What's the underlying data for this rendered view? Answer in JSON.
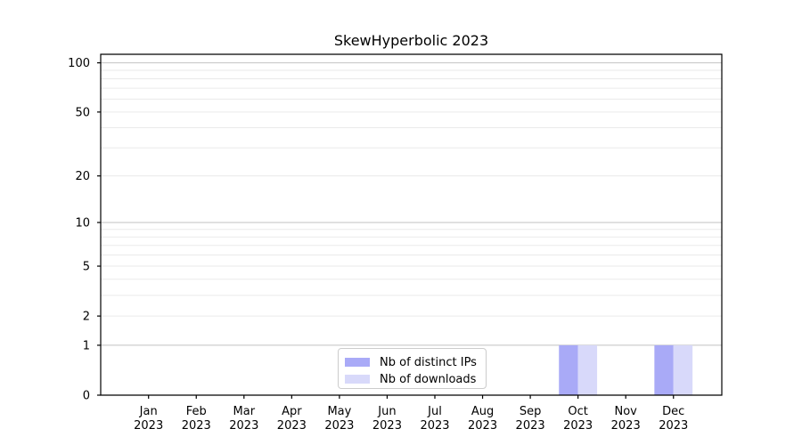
{
  "title": "SkewHyperbolic 2023",
  "colors": {
    "series_distinct_ips": "#a9aaf7",
    "series_downloads": "#d8d9fa",
    "grid_major": "#c2c2c2",
    "grid_minor": "#eaeaea",
    "axis": "#000000",
    "text": "#000000",
    "legend_border": "#cccccc",
    "background": "#ffffff"
  },
  "legend": {
    "items": [
      {
        "label": "Nb of distinct IPs",
        "color": "#a9aaf7"
      },
      {
        "label": "Nb of downloads",
        "color": "#d8d9fa"
      }
    ],
    "position": "lower center"
  },
  "chart_data": {
    "type": "bar",
    "title": "SkewHyperbolic 2023",
    "categories": [
      "Jan 2023",
      "Feb 2023",
      "Mar 2023",
      "Apr 2023",
      "May 2023",
      "Jun 2023",
      "Jul 2023",
      "Aug 2023",
      "Sep 2023",
      "Oct 2023",
      "Nov 2023",
      "Dec 2023"
    ],
    "category_month_labels": [
      "Jan",
      "Feb",
      "Mar",
      "Apr",
      "May",
      "Jun",
      "Jul",
      "Aug",
      "Sep",
      "Oct",
      "Nov",
      "Dec"
    ],
    "category_year_label": "2023",
    "series": [
      {
        "name": "Nb of distinct IPs",
        "color": "#a9aaf7",
        "values": [
          0,
          0,
          0,
          0,
          0,
          0,
          0,
          0,
          0,
          1,
          0,
          1
        ]
      },
      {
        "name": "Nb of downloads",
        "color": "#d8d9fa",
        "values": [
          0,
          0,
          0,
          0,
          0,
          0,
          0,
          0,
          0,
          1,
          0,
          1
        ]
      }
    ],
    "xlabel": "",
    "ylabel": "",
    "y_scale": "log1p",
    "y_tick_labels": [
      0,
      1,
      2,
      5,
      10,
      20,
      50,
      100
    ],
    "y_major_gridlines": [
      1,
      10,
      100
    ],
    "y_minor_gridlines": [
      2,
      3,
      4,
      5,
      6,
      7,
      8,
      9,
      20,
      30,
      40,
      50,
      60,
      70,
      80,
      90
    ],
    "ylim": [
      0,
      113
    ],
    "grid": "horizontal",
    "legend_position": "lower center"
  }
}
